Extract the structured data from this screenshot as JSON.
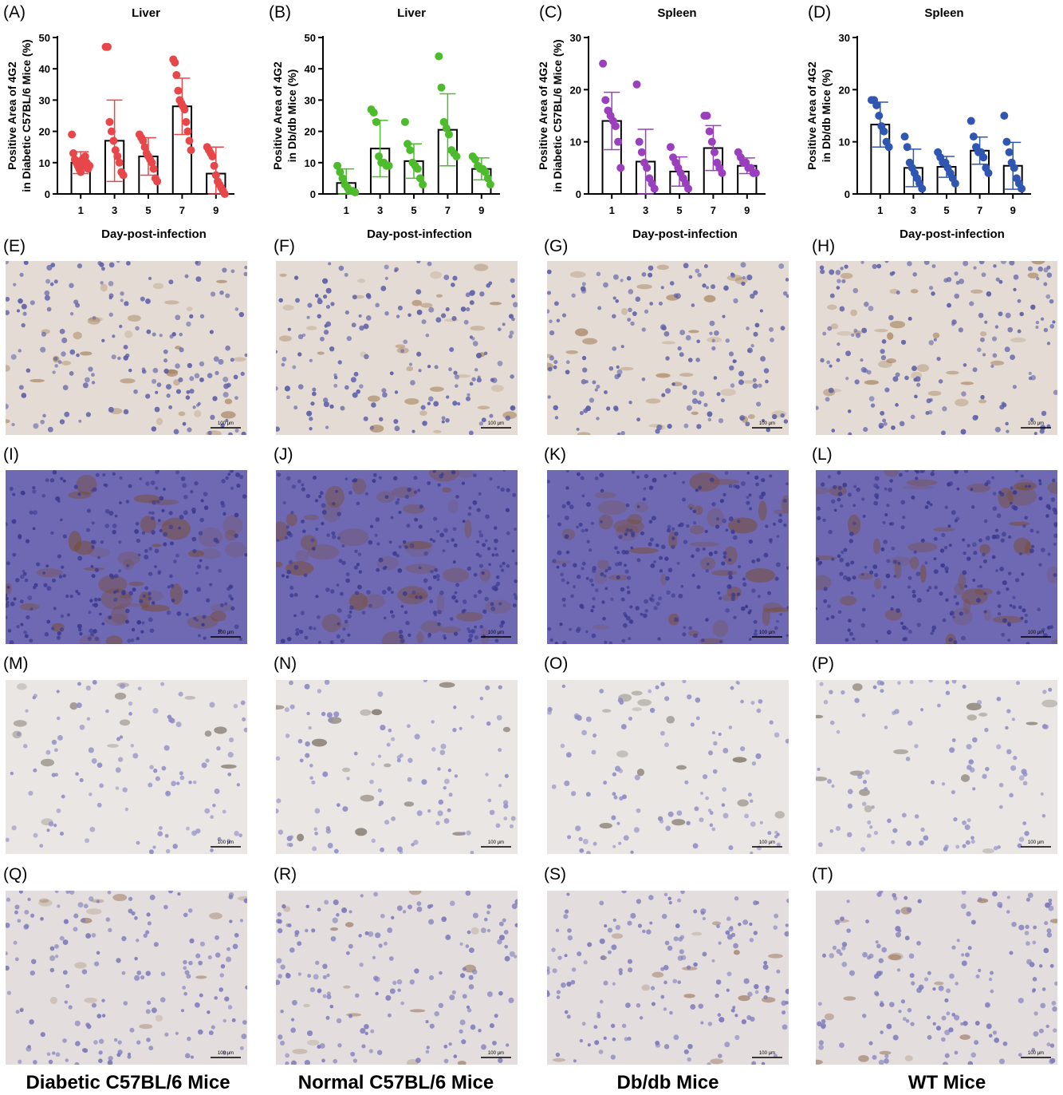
{
  "charts": [
    {
      "label": "(A)",
      "title": "Liver",
      "ylabel_lines": [
        "Positive Area of 4G2",
        "in Diabetic C57BL/6 Mice (%)"
      ],
      "xlabel": "Day-post-infection",
      "color": "#e8474a",
      "ylim": [
        0,
        50
      ],
      "yticks": [
        0,
        10,
        20,
        30,
        40,
        50
      ],
      "categories": [
        "1",
        "3",
        "5",
        "7",
        "9"
      ]
    },
    {
      "label": "(B)",
      "title": "Liver",
      "ylabel_lines": [
        "Positive Area of 4G2",
        "in Db/db Mice (%)"
      ],
      "xlabel": "Day-post-infection",
      "color": "#4cbb2c",
      "ylim": [
        0,
        50
      ],
      "yticks": [
        0,
        10,
        20,
        30,
        40,
        50
      ],
      "categories": [
        "1",
        "3",
        "5",
        "7",
        "9"
      ]
    },
    {
      "label": "(C)",
      "title": "Spleen",
      "ylabel_lines": [
        "Positive Area of 4G2",
        "in Diabetic C57BL/6 Mice (%)"
      ],
      "xlabel": "Day-post-infection",
      "color": "#9a3fbd",
      "ylim": [
        0,
        30
      ],
      "yticks": [
        0,
        10,
        20,
        30
      ],
      "categories": [
        "1",
        "3",
        "5",
        "7",
        "9"
      ]
    },
    {
      "label": "(D)",
      "title": "Spleen",
      "ylabel_lines": [
        "Positive Area of 4G2",
        "in Db/db Mice (%)"
      ],
      "xlabel": "Day-post-infection",
      "color": "#2f56b0",
      "ylim": [
        0,
        30
      ],
      "yticks": [
        0,
        10,
        20,
        30
      ],
      "categories": [
        "1",
        "3",
        "5",
        "7",
        "9"
      ]
    }
  ],
  "chart_data": [
    {
      "type": "bar",
      "title": "Liver",
      "xlabel": "Day-post-infection",
      "ylabel": "Positive Area of 4G2 in Diabetic C57BL/6 Mice (%)",
      "categories": [
        "1",
        "3",
        "5",
        "7",
        "9"
      ],
      "means": [
        10,
        17,
        12,
        28,
        6.5
      ],
      "sd": [
        3.5,
        13,
        6,
        9,
        8.5
      ],
      "points": [
        [
          19,
          13,
          11,
          10,
          9,
          8,
          7,
          11,
          9,
          12,
          10,
          8,
          9
        ],
        [
          47,
          47,
          23,
          20,
          17,
          14,
          12,
          10,
          7,
          6
        ],
        [
          19,
          18,
          17,
          15,
          13,
          12,
          11,
          10,
          8,
          5,
          4
        ],
        [
          43,
          42,
          38,
          33,
          30,
          29,
          28,
          27,
          23,
          20,
          17,
          14
        ],
        [
          15,
          14,
          13,
          12,
          9,
          6,
          4,
          3,
          2,
          1,
          0
        ]
      ],
      "ylim": [
        0,
        50
      ]
    },
    {
      "type": "bar",
      "title": "Liver",
      "xlabel": "Day-post-infection",
      "ylabel": "Positive Area of 4G2 in Db/db Mice (%)",
      "categories": [
        "1",
        "3",
        "5",
        "7",
        "9"
      ],
      "means": [
        3.5,
        14.5,
        10.5,
        20.5,
        8
      ],
      "sd": [
        4.5,
        9,
        5.5,
        11.5,
        3.5
      ],
      "points": [
        [
          9,
          7,
          5,
          3,
          2,
          1,
          1,
          0.5
        ],
        [
          27,
          26,
          23,
          12,
          10,
          10,
          9,
          9
        ],
        [
          23,
          16,
          14,
          10,
          9,
          8,
          5,
          3
        ],
        [
          44,
          34,
          23,
          21,
          19,
          14,
          13,
          12
        ],
        [
          12,
          11,
          9,
          8,
          8,
          7,
          5,
          3
        ]
      ],
      "ylim": [
        0,
        50
      ]
    },
    {
      "type": "bar",
      "title": "Spleen",
      "xlabel": "Day-post-infection",
      "ylabel": "Positive Area of 4G2 in Diabetic C57BL/6 Mice (%)",
      "categories": [
        "1",
        "3",
        "5",
        "7",
        "9"
      ],
      "means": [
        14,
        6.2,
        4.3,
        8.8,
        5.4
      ],
      "sd": [
        5.5,
        6.2,
        2.8,
        4.3,
        1.5
      ],
      "points": [
        [
          25,
          18,
          16,
          15,
          14,
          13,
          10,
          5
        ],
        [
          21,
          10,
          8,
          6,
          5,
          3,
          2,
          1
        ],
        [
          9,
          7,
          6,
          5,
          4,
          3,
          2,
          1
        ],
        [
          15,
          15,
          12,
          10,
          8,
          6,
          5,
          4
        ],
        [
          8,
          7,
          6,
          6,
          5,
          5,
          4,
          4
        ]
      ],
      "ylim": [
        0,
        30
      ]
    },
    {
      "type": "bar",
      "title": "Spleen",
      "xlabel": "Day-post-infection",
      "ylabel": "Positive Area of 4G2 in Db/db Mice (%)",
      "categories": [
        "1",
        "3",
        "5",
        "7",
        "9"
      ],
      "means": [
        13.3,
        5,
        5.2,
        8.3,
        5.4
      ],
      "sd": [
        4.3,
        3.6,
        2,
        2.6,
        4.5
      ],
      "points": [
        [
          18,
          18,
          17,
          15,
          13,
          12,
          10,
          9
        ],
        [
          11,
          9,
          6,
          5,
          4,
          3,
          2,
          1
        ],
        [
          8,
          7,
          6,
          6,
          5,
          4,
          3,
          2
        ],
        [
          14,
          11,
          9,
          8,
          8,
          7,
          5,
          4
        ],
        [
          15,
          10,
          8,
          6,
          5,
          3,
          2,
          1
        ]
      ],
      "ylim": [
        0,
        30
      ]
    }
  ],
  "image_rows": [
    {
      "labels": [
        "(E)",
        "(F)",
        "(G)",
        "(H)"
      ],
      "bg": "#e4dcd4",
      "nucleus": "#5d5fa8",
      "stain": "#8a5a2a",
      "scale": "100 μm"
    },
    {
      "labels": [
        "(I)",
        "(J)",
        "(K)",
        "(L)"
      ],
      "bg": "#6f69b3",
      "nucleus": "#3b3a8f",
      "stain": "#7b4a25",
      "scale": "100 μm"
    },
    {
      "labels": [
        "(M)",
        "(N)",
        "(O)",
        "(P)"
      ],
      "bg": "#e9e6e4",
      "nucleus": "#8f8cc4",
      "stain": "#3a2a1a",
      "scale": "100 μm"
    },
    {
      "labels": [
        "(Q)",
        "(R)",
        "(S)",
        "(T)"
      ],
      "bg": "#e3dedd",
      "nucleus": "#7d79bb",
      "stain": "#7b4a25",
      "scale": "100 μm"
    }
  ],
  "group_labels": [
    "Diabetic C57BL/6 Mice",
    "Normal C57BL/6 Mice",
    "Db/db Mice",
    "WT Mice"
  ]
}
